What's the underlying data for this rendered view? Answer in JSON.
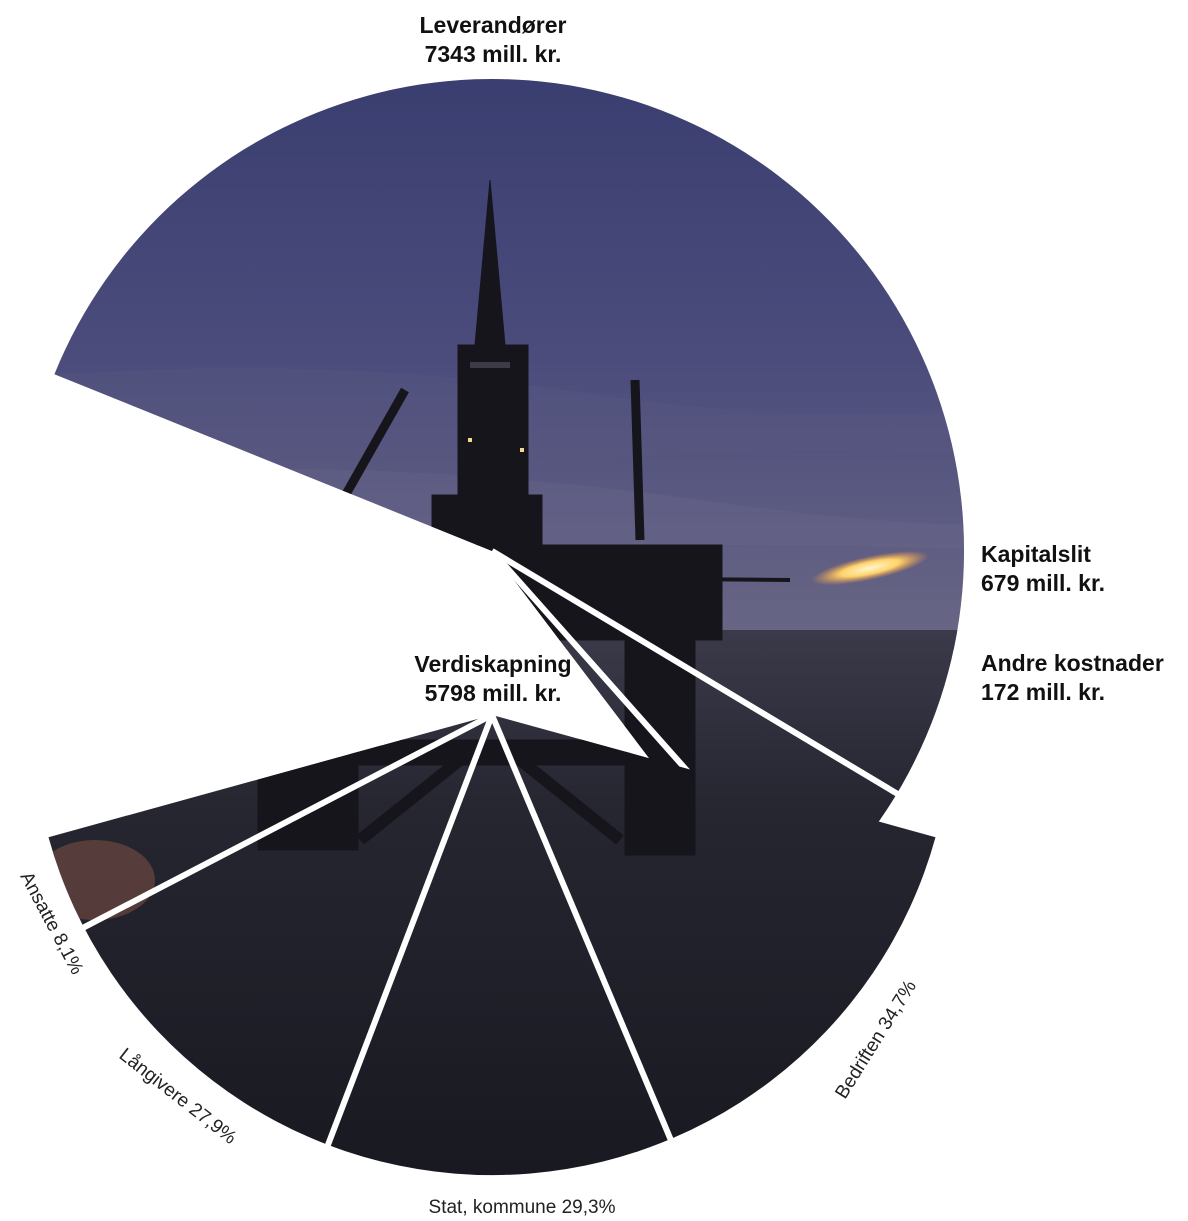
{
  "chart_data": [
    {
      "type": "pie",
      "slices": [
        {
          "name": "Leverandører",
          "value_text": "7343 mill. kr.",
          "value": 7343
        },
        {
          "name": "Kapitalslit",
          "value_text": "679 mill. kr.",
          "value": 679
        },
        {
          "name": "Andre kostnader",
          "value_text": "172 mill. kr.",
          "value": 172
        },
        {
          "name": "Verdiskapning",
          "value_text": "5798 mill. kr.",
          "value": 5798
        }
      ],
      "style": "photo-fill, exploded segments",
      "photo_subject": "offshore drilling rig silhouette at dusk with gas flares"
    },
    {
      "type": "pie",
      "title_ref": "Verdiskapning",
      "slices": [
        {
          "label": "Bedriften 34,7%",
          "value": 34.7
        },
        {
          "label": "Stat, kommune 29,3%",
          "value": 29.3
        },
        {
          "label": "Långivere 27,9%",
          "value": 27.9
        },
        {
          "label": "Ansatte 8,1%",
          "value": 8.1
        }
      ]
    }
  ],
  "colors": {
    "sky_top": "#3c4272",
    "sky_bottom": "#55537d",
    "sea": "#2b2c38",
    "rig": "#17161d",
    "flare": "#ffdf8a",
    "separator": "#ffffff"
  }
}
